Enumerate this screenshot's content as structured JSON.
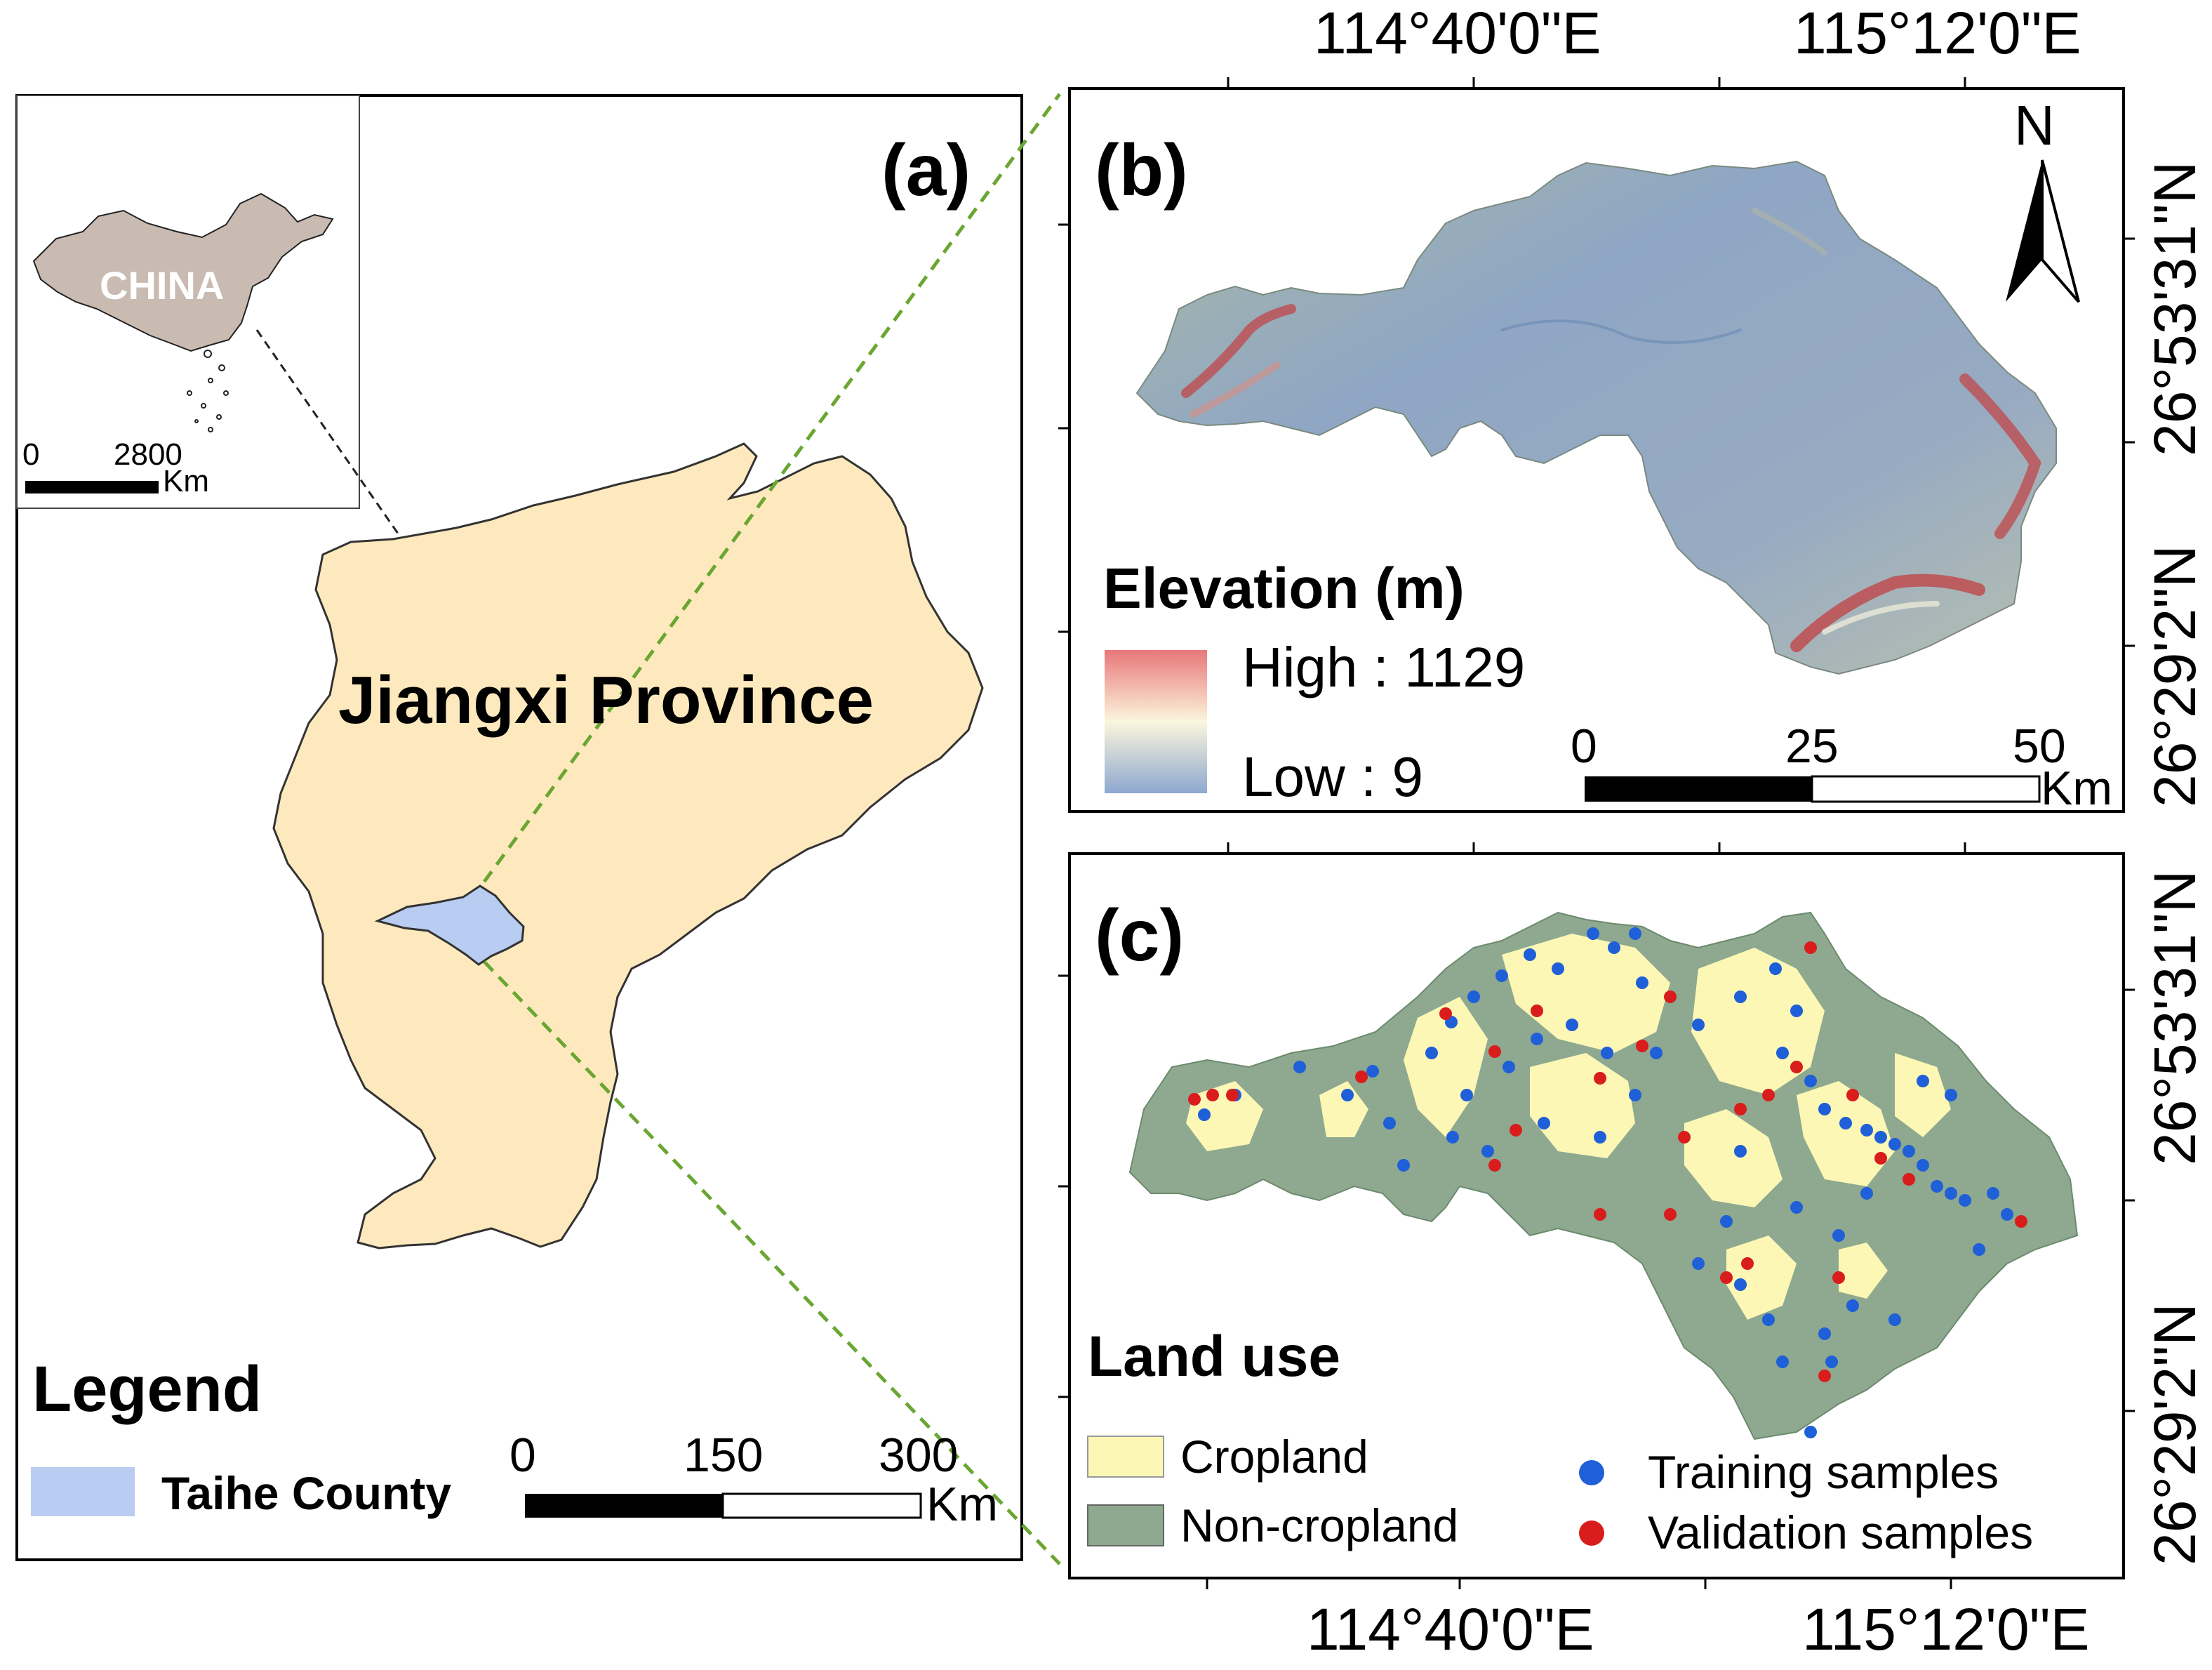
{
  "panel_a": {
    "label": "(a)",
    "inset_country": "CHINA",
    "inset_scale": {
      "zero": "0",
      "max": "2800",
      "unit": "Km"
    },
    "province": "Jiangxi Province",
    "legend_title": "Legend",
    "legend_item": "Taihe County",
    "scale": {
      "zero": "0",
      "mid": "150",
      "max": "300",
      "unit": "Km"
    },
    "colors": {
      "province": "#fde9bd",
      "county": "#b9cdf2",
      "china": "#c9bbb1",
      "connector": "#6aa632"
    }
  },
  "panel_b": {
    "label": "(b)",
    "north": "N",
    "legend_title": "Elevation (m)",
    "high": "High : 1129",
    "low": "Low : 9",
    "scale": {
      "zero": "0",
      "mid": "25",
      "max": "50",
      "unit": "Km"
    },
    "colors": {
      "low": "#8ea5c6",
      "mid": "#f4f1dc",
      "high": "#c0474a"
    }
  },
  "panel_c": {
    "label": "(c)",
    "legend_title": "Land use",
    "cropland": "Cropland",
    "noncropland": "Non-cropland",
    "training": "Training samples",
    "validation": "Validation samples",
    "colors": {
      "cropland": "#fdf7b5",
      "noncropland": "#8ea990",
      "training": "#1f5fd8",
      "validation": "#d91d1d"
    }
  },
  "coords": {
    "lon1": "114°40'0\"E",
    "lon2": "115°12'0\"E",
    "lat1": "26°53'31\"N",
    "lat2": "26°29'2\"N"
  }
}
